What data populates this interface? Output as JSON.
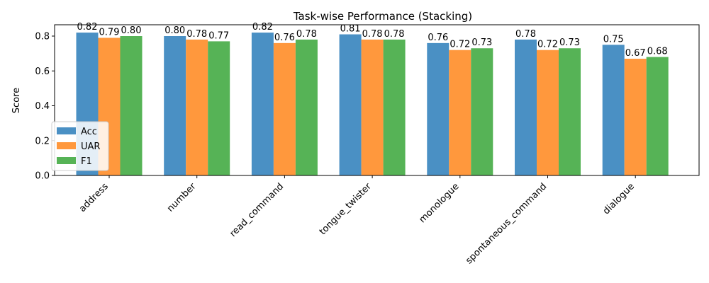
{
  "chart_data": {
    "type": "bar",
    "title": "Task-wise Performance (Stacking)",
    "xlabel": "",
    "ylabel": "Score",
    "ylim": [
      0,
      0.865
    ],
    "yticks": [
      0.0,
      0.2,
      0.4,
      0.6,
      0.8
    ],
    "ytick_labels": [
      "0.0",
      "0.2",
      "0.4",
      "0.6",
      "0.8"
    ],
    "grid": false,
    "legend_position": "lower-left",
    "categories": [
      "address",
      "number",
      "read_command",
      "tongue_twister",
      "monologue",
      "spontaneous_command",
      "dialogue"
    ],
    "series": [
      {
        "name": "Acc",
        "color": "#4a90c4",
        "values": [
          0.82,
          0.8,
          0.82,
          0.81,
          0.76,
          0.78,
          0.75
        ],
        "labels": [
          "0.82",
          "0.80",
          "0.82",
          "0.81",
          "0.76",
          "0.78",
          "0.75"
        ]
      },
      {
        "name": "UAR",
        "color": "#ff983d",
        "values": [
          0.79,
          0.78,
          0.76,
          0.78,
          0.72,
          0.72,
          0.67
        ],
        "labels": [
          "0.79",
          "0.78",
          "0.76",
          "0.78",
          "0.72",
          "0.72",
          "0.67"
        ]
      },
      {
        "name": "F1",
        "color": "#56b356",
        "values": [
          0.8,
          0.77,
          0.78,
          0.78,
          0.73,
          0.73,
          0.68
        ],
        "labels": [
          "0.80",
          "0.77",
          "0.78",
          "0.78",
          "0.73",
          "0.73",
          "0.68"
        ]
      }
    ]
  }
}
